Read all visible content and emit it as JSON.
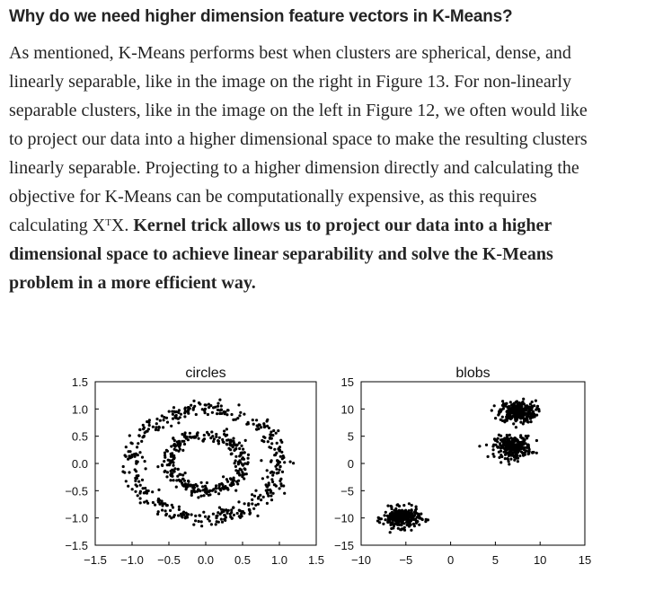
{
  "article": {
    "heading": "Why do we need higher dimension feature vectors in K-Means?",
    "para_line1": "As mentioned, K-Means performs best when clusters are spherical, dense, and",
    "para_line2": "linearly separable, like in the image on the right in Figure 13. For non-linearly",
    "para_line3": "separable clusters, like in the image on the left in Figure 12, we often would like",
    "para_line4": "to project our data into a higher dimensional space to make the resulting clusters",
    "para_line5": "linearly separable. Projecting to a higher dimension directly and calculating the",
    "para_line6": "objective for K-Means can be computationally expensive, as this requires",
    "para_line7_pre": "calculating X",
    "para_line7_sup": "T",
    "para_line7_post": "X. ",
    "bold_line1": "Kernel trick allows us to project our data into a higher",
    "bold_line2": "dimensional space to achieve linear separability and solve the K-Means",
    "bold_line3": "problem in a more efficient way."
  },
  "chart_data": [
    {
      "type": "scatter",
      "title": "circles",
      "xlabel": "",
      "ylabel": "",
      "xlim": [
        -1.5,
        1.5
      ],
      "ylim": [
        -1.5,
        1.5
      ],
      "xticks": [
        "−1.5",
        "−1.0",
        "−0.5",
        "0.0",
        "0.5",
        "1.0",
        "1.5"
      ],
      "yticks": [
        "1.5",
        "1.0",
        "0.5",
        "0.0",
        "−0.5",
        "−1.0",
        "−1.5"
      ],
      "grid": false,
      "series": [
        {
          "shape": "ring",
          "cx": 0.0,
          "cy": 0.0,
          "radius": 1.0,
          "noise": 0.07,
          "n": 420
        },
        {
          "shape": "ring",
          "cx": 0.0,
          "cy": 0.0,
          "radius": 0.5,
          "noise": 0.06,
          "n": 320
        }
      ],
      "point_color": "#000000"
    },
    {
      "type": "scatter",
      "title": "blobs",
      "xlabel": "",
      "ylabel": "",
      "xlim": [
        -10,
        15
      ],
      "ylim": [
        -15,
        15
      ],
      "xticks": [
        "−10",
        "−5",
        "0",
        "5",
        "10",
        "15"
      ],
      "yticks": [
        "15",
        "10",
        "5",
        "0",
        "−5",
        "−10",
        "−15"
      ],
      "grid": false,
      "series": [
        {
          "shape": "blob",
          "cx": 7.5,
          "cy": 9.5,
          "sx": 1.0,
          "sy": 1.0,
          "n": 280
        },
        {
          "shape": "blob",
          "cx": 7.0,
          "cy": 3.0,
          "sx": 1.0,
          "sy": 1.0,
          "n": 280
        },
        {
          "shape": "blob",
          "cx": -5.5,
          "cy": -10.0,
          "sx": 1.0,
          "sy": 0.9,
          "n": 280
        }
      ],
      "point_color": "#000000"
    }
  ]
}
